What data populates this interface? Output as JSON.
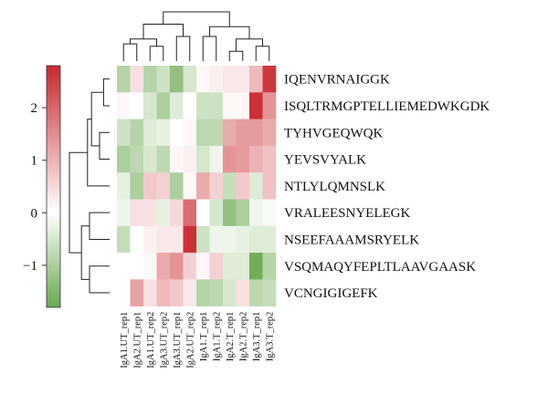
{
  "chart_data": {
    "type": "heatmap",
    "title": "",
    "xlabel": "",
    "ylabel": "",
    "rows": [
      "IQENVRNAIGGK",
      "ISQLTRMGPTELLIEMEDWKGDK",
      "TYHVGEQWQK",
      "YEVSVYALK",
      "NTLYLQMNSLK",
      "VRALEESNYELEGK",
      "NSEEFAAAMSRYELK",
      "VSQMAQYFEPLTLAAVGAASK",
      "VCNGIGIGEFK"
    ],
    "columns": [
      "IgA1.UT_rep1",
      "IgA2.UT_rep1",
      "IgA1.UT_rep2",
      "IgA3.UT_rep2",
      "IgA3.UT_rep1",
      "IgA2.UT_rep2",
      "IgA1.T_rep1",
      "IgA1.T_rep2",
      "IgA2.T_rep1",
      "IgA2.T_rep2",
      "IgA3.T_rep1",
      "IgA3.T_rep2"
    ],
    "values": [
      [
        -0.9,
        0.4,
        -0.9,
        -0.6,
        -1.3,
        -0.5,
        0.1,
        0.2,
        0.3,
        0.3,
        0.9,
        2.6
      ],
      [
        0.1,
        0.0,
        -0.5,
        -1.0,
        -0.4,
        0.0,
        -0.6,
        -0.6,
        0.1,
        0.1,
        2.7,
        1.4
      ],
      [
        -0.6,
        -0.9,
        -0.4,
        -0.3,
        0.0,
        0.1,
        -0.8,
        -0.8,
        1.1,
        1.3,
        1.3,
        1.1
      ],
      [
        -1.0,
        -0.8,
        -0.5,
        -0.8,
        0.1,
        0.2,
        -0.5,
        -0.2,
        1.4,
        1.3,
        1.0,
        0.8
      ],
      [
        -0.3,
        -1.0,
        0.7,
        0.6,
        -1.0,
        0.1,
        1.1,
        0.6,
        -0.7,
        0.7,
        -0.4,
        0.8
      ],
      [
        -0.2,
        0.4,
        0.4,
        -0.3,
        0.5,
        1.9,
        0.0,
        -0.5,
        -1.3,
        -1.0,
        -0.2,
        -0.1
      ],
      [
        -0.7,
        0.0,
        0.2,
        0.3,
        0.3,
        2.7,
        -0.6,
        -0.2,
        -0.2,
        -0.3,
        -0.4,
        -0.4
      ],
      [
        0.0,
        0.0,
        -0.1,
        1.1,
        1.4,
        0.6,
        0.1,
        0.6,
        -0.4,
        -0.4,
        -1.7,
        -0.9
      ],
      [
        0.0,
        1.2,
        0.4,
        0.9,
        0.7,
        0.3,
        -0.9,
        -0.8,
        -0.5,
        0.4,
        -0.8,
        -0.7
      ]
    ],
    "color_scale": {
      "min": -1.8,
      "max": 2.8,
      "ticks": [
        -1,
        0,
        1,
        2
      ],
      "tick_labels": [
        "−1",
        "0",
        "1",
        "2"
      ],
      "low_color": "#6aa84f",
      "mid_color": "#ffffff",
      "high_color": "#c9282f",
      "position": "left"
    },
    "row_dendrogram": [
      [
        0,
        1,
        0.15
      ],
      [
        2,
        3,
        0.25
      ],
      [
        9,
        10,
        0.45
      ],
      [
        11,
        4,
        0.55
      ],
      [
        5,
        6,
        0.5
      ],
      [
        7,
        8,
        0.5
      ],
      [
        13,
        14,
        0.7
      ],
      [
        12,
        15,
        1.0
      ]
    ],
    "column_dendrogram": [
      [
        0,
        1,
        0.35
      ],
      [
        2,
        3,
        0.3
      ],
      [
        12,
        13,
        0.45
      ],
      [
        4,
        5,
        0.5
      ],
      [
        14,
        15,
        0.75
      ],
      [
        8,
        9,
        0.2
      ],
      [
        10,
        11,
        0.3
      ],
      [
        17,
        18,
        0.45
      ],
      [
        6,
        7,
        0.5
      ],
      [
        20,
        19,
        0.7
      ],
      [
        16,
        21,
        1.0
      ]
    ],
    "grid": false,
    "legend": "left"
  }
}
